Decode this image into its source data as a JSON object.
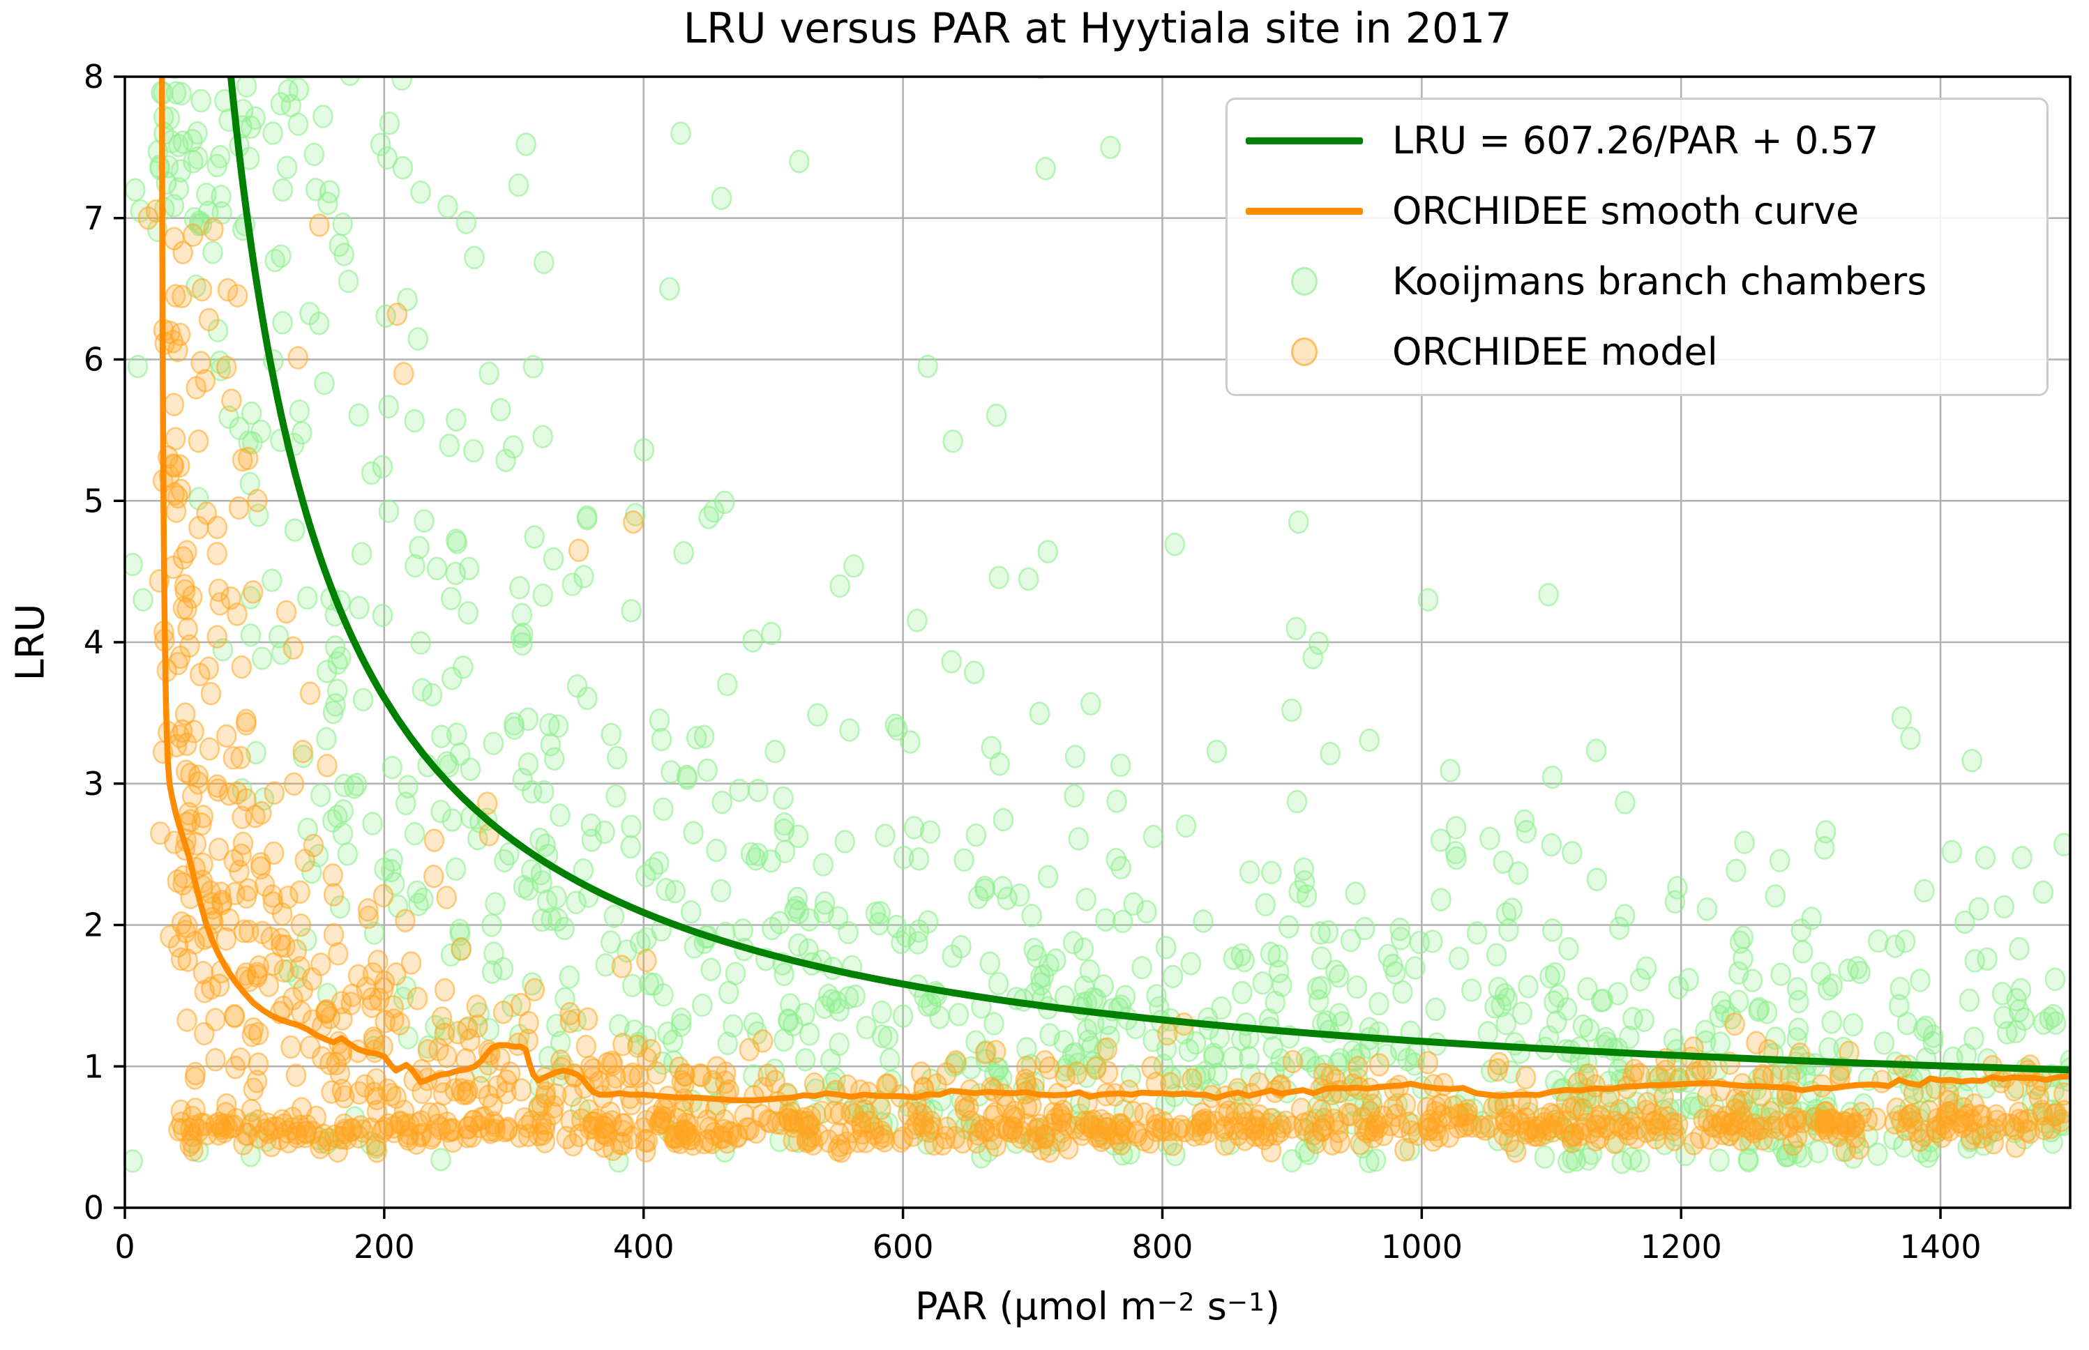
{
  "title": "LRU versus PAR at Hyytiala site in 2017",
  "axes": {
    "ylabel": "LRU",
    "xlabel_plain": "PAR (μmol m⁻² s⁻¹)",
    "xlabel_parts": [
      {
        "text": "PAR (μmol m"
      },
      {
        "sup": "−2"
      },
      {
        "text": " s"
      },
      {
        "sup": "−1"
      },
      {
        "text": ")"
      }
    ],
    "xlim": [
      0,
      1500
    ],
    "ylim": [
      0,
      8
    ],
    "xticks": [
      0,
      200,
      400,
      600,
      800,
      1000,
      1200,
      1400
    ],
    "yticks": [
      0,
      1,
      2,
      3,
      4,
      5,
      6,
      7,
      8
    ],
    "grid": true,
    "grid_color": "#b0b0b0",
    "spine_color": "#000000",
    "tick_color": "#000000"
  },
  "legend": {
    "position": "upper right",
    "entries": [
      {
        "label": "LRU = 607.26/PAR + 0.57",
        "kind": "line",
        "color": "#008000"
      },
      {
        "label": "ORCHIDEE smooth curve",
        "kind": "line",
        "color": "#ff8c00"
      },
      {
        "label": "Kooijmans branch chambers",
        "kind": "marker",
        "color": "#90ee90"
      },
      {
        "label": "ORCHIDEE model",
        "kind": "marker",
        "color": "#ffa520"
      }
    ]
  },
  "colors": {
    "fit_line": "#008000",
    "smooth_line": "#ff8c00",
    "kooijmans_fill": "rgba(144,238,144,0.26)",
    "kooijmans_stroke": "rgba(144,238,144,0.60)",
    "orchidee_fill": "rgba(255,165,32,0.25)",
    "orchidee_stroke": "rgba(255,165,32,0.55)",
    "background": "#ffffff"
  },
  "chart_data": {
    "type": "scatter",
    "title": "LRU versus PAR at Hyytiala site in 2017",
    "xlabel": "PAR (umol m^-2 s^-1)",
    "ylabel": "LRU",
    "xlim": [
      0,
      1500
    ],
    "ylim": [
      0,
      8
    ],
    "grid": true,
    "legend_position": "upper right",
    "marker": {
      "rx": 13.5,
      "ry": 15.5,
      "stroke_width": 2.6
    },
    "series": [
      {
        "name": "LRU = 607.26/PAR + 0.57",
        "kind": "line",
        "color": "#008000",
        "width": 10,
        "formula": {
          "type": "a_over_x_plus_b",
          "a": 607.26,
          "b": 0.57
        },
        "x_start": 74,
        "x_end": 1500
      },
      {
        "name": "ORCHIDEE smooth curve",
        "kind": "line",
        "color": "#ff8c00",
        "width": 8.5,
        "jitter": {
          "seed": 555,
          "amplitude": 0.012,
          "from_x": 165,
          "step": 8
        },
        "points": [
          [
            28.5,
            8.45
          ],
          [
            28.8,
            7.2
          ],
          [
            29.1,
            6.2
          ],
          [
            29.5,
            5.4
          ],
          [
            30,
            4.75
          ],
          [
            30.5,
            4.3
          ],
          [
            31,
            3.95
          ],
          [
            31.6,
            3.6
          ],
          [
            32.3,
            3.35
          ],
          [
            33.2,
            3.15
          ],
          [
            34.5,
            3.0
          ],
          [
            36.5,
            2.9
          ],
          [
            39,
            2.8
          ],
          [
            42,
            2.7
          ],
          [
            45.5,
            2.6
          ],
          [
            49.5,
            2.48
          ],
          [
            53.5,
            2.33
          ],
          [
            57.5,
            2.18
          ],
          [
            62,
            2.03
          ],
          [
            67,
            1.9
          ],
          [
            72.5,
            1.79
          ],
          [
            78.5,
            1.69
          ],
          [
            85,
            1.6
          ],
          [
            92,
            1.52
          ],
          [
            99,
            1.45
          ],
          [
            106,
            1.4
          ],
          [
            113,
            1.36
          ],
          [
            120,
            1.33
          ],
          [
            127,
            1.31
          ],
          [
            134,
            1.29
          ],
          [
            141,
            1.26
          ],
          [
            148,
            1.22
          ],
          [
            155,
            1.19
          ],
          [
            161,
            1.17
          ],
          [
            167,
            1.2
          ],
          [
            173,
            1.16
          ],
          [
            180,
            1.12
          ],
          [
            187,
            1.1
          ],
          [
            194,
            1.09
          ],
          [
            200,
            1.07
          ],
          [
            205,
            1.01
          ],
          [
            209,
            0.97
          ],
          [
            213,
            0.99
          ],
          [
            217,
            1.01
          ],
          [
            221,
            0.98
          ],
          [
            225,
            0.93
          ],
          [
            228,
            0.89
          ],
          [
            232,
            0.9
          ],
          [
            237,
            0.92
          ],
          [
            243,
            0.94
          ],
          [
            250,
            0.95
          ],
          [
            257,
            0.97
          ],
          [
            264,
            0.98
          ],
          [
            270,
            1.0
          ],
          [
            275,
            1.04
          ],
          [
            279,
            1.09
          ],
          [
            283,
            1.13
          ],
          [
            288,
            1.15
          ],
          [
            294,
            1.15
          ],
          [
            300,
            1.14
          ],
          [
            305,
            1.14
          ],
          [
            309,
            1.12
          ],
          [
            312,
            1.02
          ],
          [
            315,
            0.94
          ],
          [
            319,
            0.9
          ],
          [
            323,
            0.92
          ],
          [
            328,
            0.94
          ],
          [
            333,
            0.96
          ],
          [
            338,
            0.97
          ],
          [
            344,
            0.96
          ],
          [
            349,
            0.94
          ],
          [
            353,
            0.91
          ],
          [
            357,
            0.86
          ],
          [
            361,
            0.82
          ],
          [
            366,
            0.8
          ],
          [
            373,
            0.8
          ],
          [
            381,
            0.81
          ],
          [
            390,
            0.8
          ],
          [
            400,
            0.8
          ],
          [
            412,
            0.79
          ],
          [
            425,
            0.78
          ],
          [
            440,
            0.78
          ],
          [
            455,
            0.77
          ],
          [
            470,
            0.76
          ],
          [
            485,
            0.76
          ],
          [
            500,
            0.77
          ],
          [
            515,
            0.78
          ],
          [
            532,
            0.79
          ],
          [
            550,
            0.8
          ],
          [
            570,
            0.8
          ],
          [
            590,
            0.79
          ],
          [
            610,
            0.78
          ],
          [
            628,
            0.8
          ],
          [
            646,
            0.82
          ],
          [
            665,
            0.82
          ],
          [
            685,
            0.81
          ],
          [
            705,
            0.8
          ],
          [
            728,
            0.8
          ],
          [
            752,
            0.8
          ],
          [
            776,
            0.8
          ],
          [
            800,
            0.81
          ],
          [
            825,
            0.8
          ],
          [
            850,
            0.8
          ],
          [
            875,
            0.81
          ],
          [
            900,
            0.82
          ],
          [
            925,
            0.84
          ],
          [
            950,
            0.85
          ],
          [
            975,
            0.86
          ],
          [
            1000,
            0.86
          ],
          [
            1022,
            0.84
          ],
          [
            1042,
            0.81
          ],
          [
            1060,
            0.79
          ],
          [
            1080,
            0.8
          ],
          [
            1100,
            0.82
          ],
          [
            1122,
            0.83
          ],
          [
            1145,
            0.84
          ],
          [
            1168,
            0.86
          ],
          [
            1192,
            0.87
          ],
          [
            1215,
            0.88
          ],
          [
            1238,
            0.87
          ],
          [
            1260,
            0.86
          ],
          [
            1282,
            0.85
          ],
          [
            1305,
            0.85
          ],
          [
            1328,
            0.86
          ],
          [
            1352,
            0.87
          ],
          [
            1376,
            0.88
          ],
          [
            1400,
            0.9
          ],
          [
            1424,
            0.9
          ],
          [
            1448,
            0.91
          ],
          [
            1472,
            0.92
          ],
          [
            1500,
            0.93
          ]
        ]
      },
      {
        "name": "Kooijmans branch chambers",
        "kind": "scatter",
        "color": "#90ee90",
        "alpha": 0.26,
        "generation": {
          "seed": 1234,
          "n": 1150,
          "par": {
            "min": 25,
            "max": 1500,
            "pow": 1.15
          },
          "shape": {
            "type": "lognormal_around_curve",
            "a": 607.26,
            "b": 0.57,
            "sigma": 0.48,
            "wide_sigma": 0.85,
            "wide_frac": 0.22
          },
          "low_band": {
            "frac": 0.035,
            "min": 0.33,
            "max": 0.75
          },
          "top_clip": 8.42,
          "top_redistribute": [
            6.9,
            8.35
          ],
          "floor": 0.32
        },
        "anchor_points": [
          [
            8,
            7.2
          ],
          [
            12,
            7.05
          ],
          [
            10,
            5.95
          ],
          [
            6,
            4.55
          ],
          [
            14,
            4.3
          ],
          [
            6,
            0.33
          ],
          [
            710,
            7.35
          ],
          [
            760,
            7.5
          ],
          [
            1005,
            4.3
          ],
          [
            905,
            4.85
          ],
          [
            520,
            7.4
          ],
          [
            420,
            6.5
          ]
        ]
      },
      {
        "name": "ORCHIDEE model",
        "kind": "scatter",
        "color": "#ffa520",
        "alpha": 0.25,
        "generation": {
          "seed": 987,
          "band": {
            "n": 880,
            "par": {
              "min": 40,
              "max": 1500,
              "pow": 1.05
            },
            "mean0": 0.55,
            "slope_per_1500": 0.05,
            "sigma": 0.07,
            "min": 0.4,
            "max": 0.9,
            "hi_frac": 0.17,
            "hi_base": 0.78,
            "hi_spread": 0.17,
            "hi_max": 1.35
          },
          "upper": {
            "n": 330,
            "par_min": 26,
            "par_exp_scale": 150,
            "par_max": 1350,
            "base": 0.55,
            "coeff": 150,
            "sigma": 0.6,
            "clip": 7.0,
            "clip_redistribute": [
              4.2,
              6.8
            ],
            "floor": 0.6
          }
        },
        "anchor_points": [
          [
            18,
            7.0
          ],
          [
            24,
            7.05
          ],
          [
            150,
            6.95
          ],
          [
            210,
            6.32
          ],
          [
            215,
            5.9
          ],
          [
            55,
            5.8
          ],
          [
            62,
            5.85
          ],
          [
            95,
            5.3
          ],
          [
            88,
            4.95
          ],
          [
            350,
            4.65
          ],
          [
            392,
            4.85
          ],
          [
            46,
            4.4
          ],
          [
            52,
            4.32
          ]
        ]
      }
    ]
  }
}
